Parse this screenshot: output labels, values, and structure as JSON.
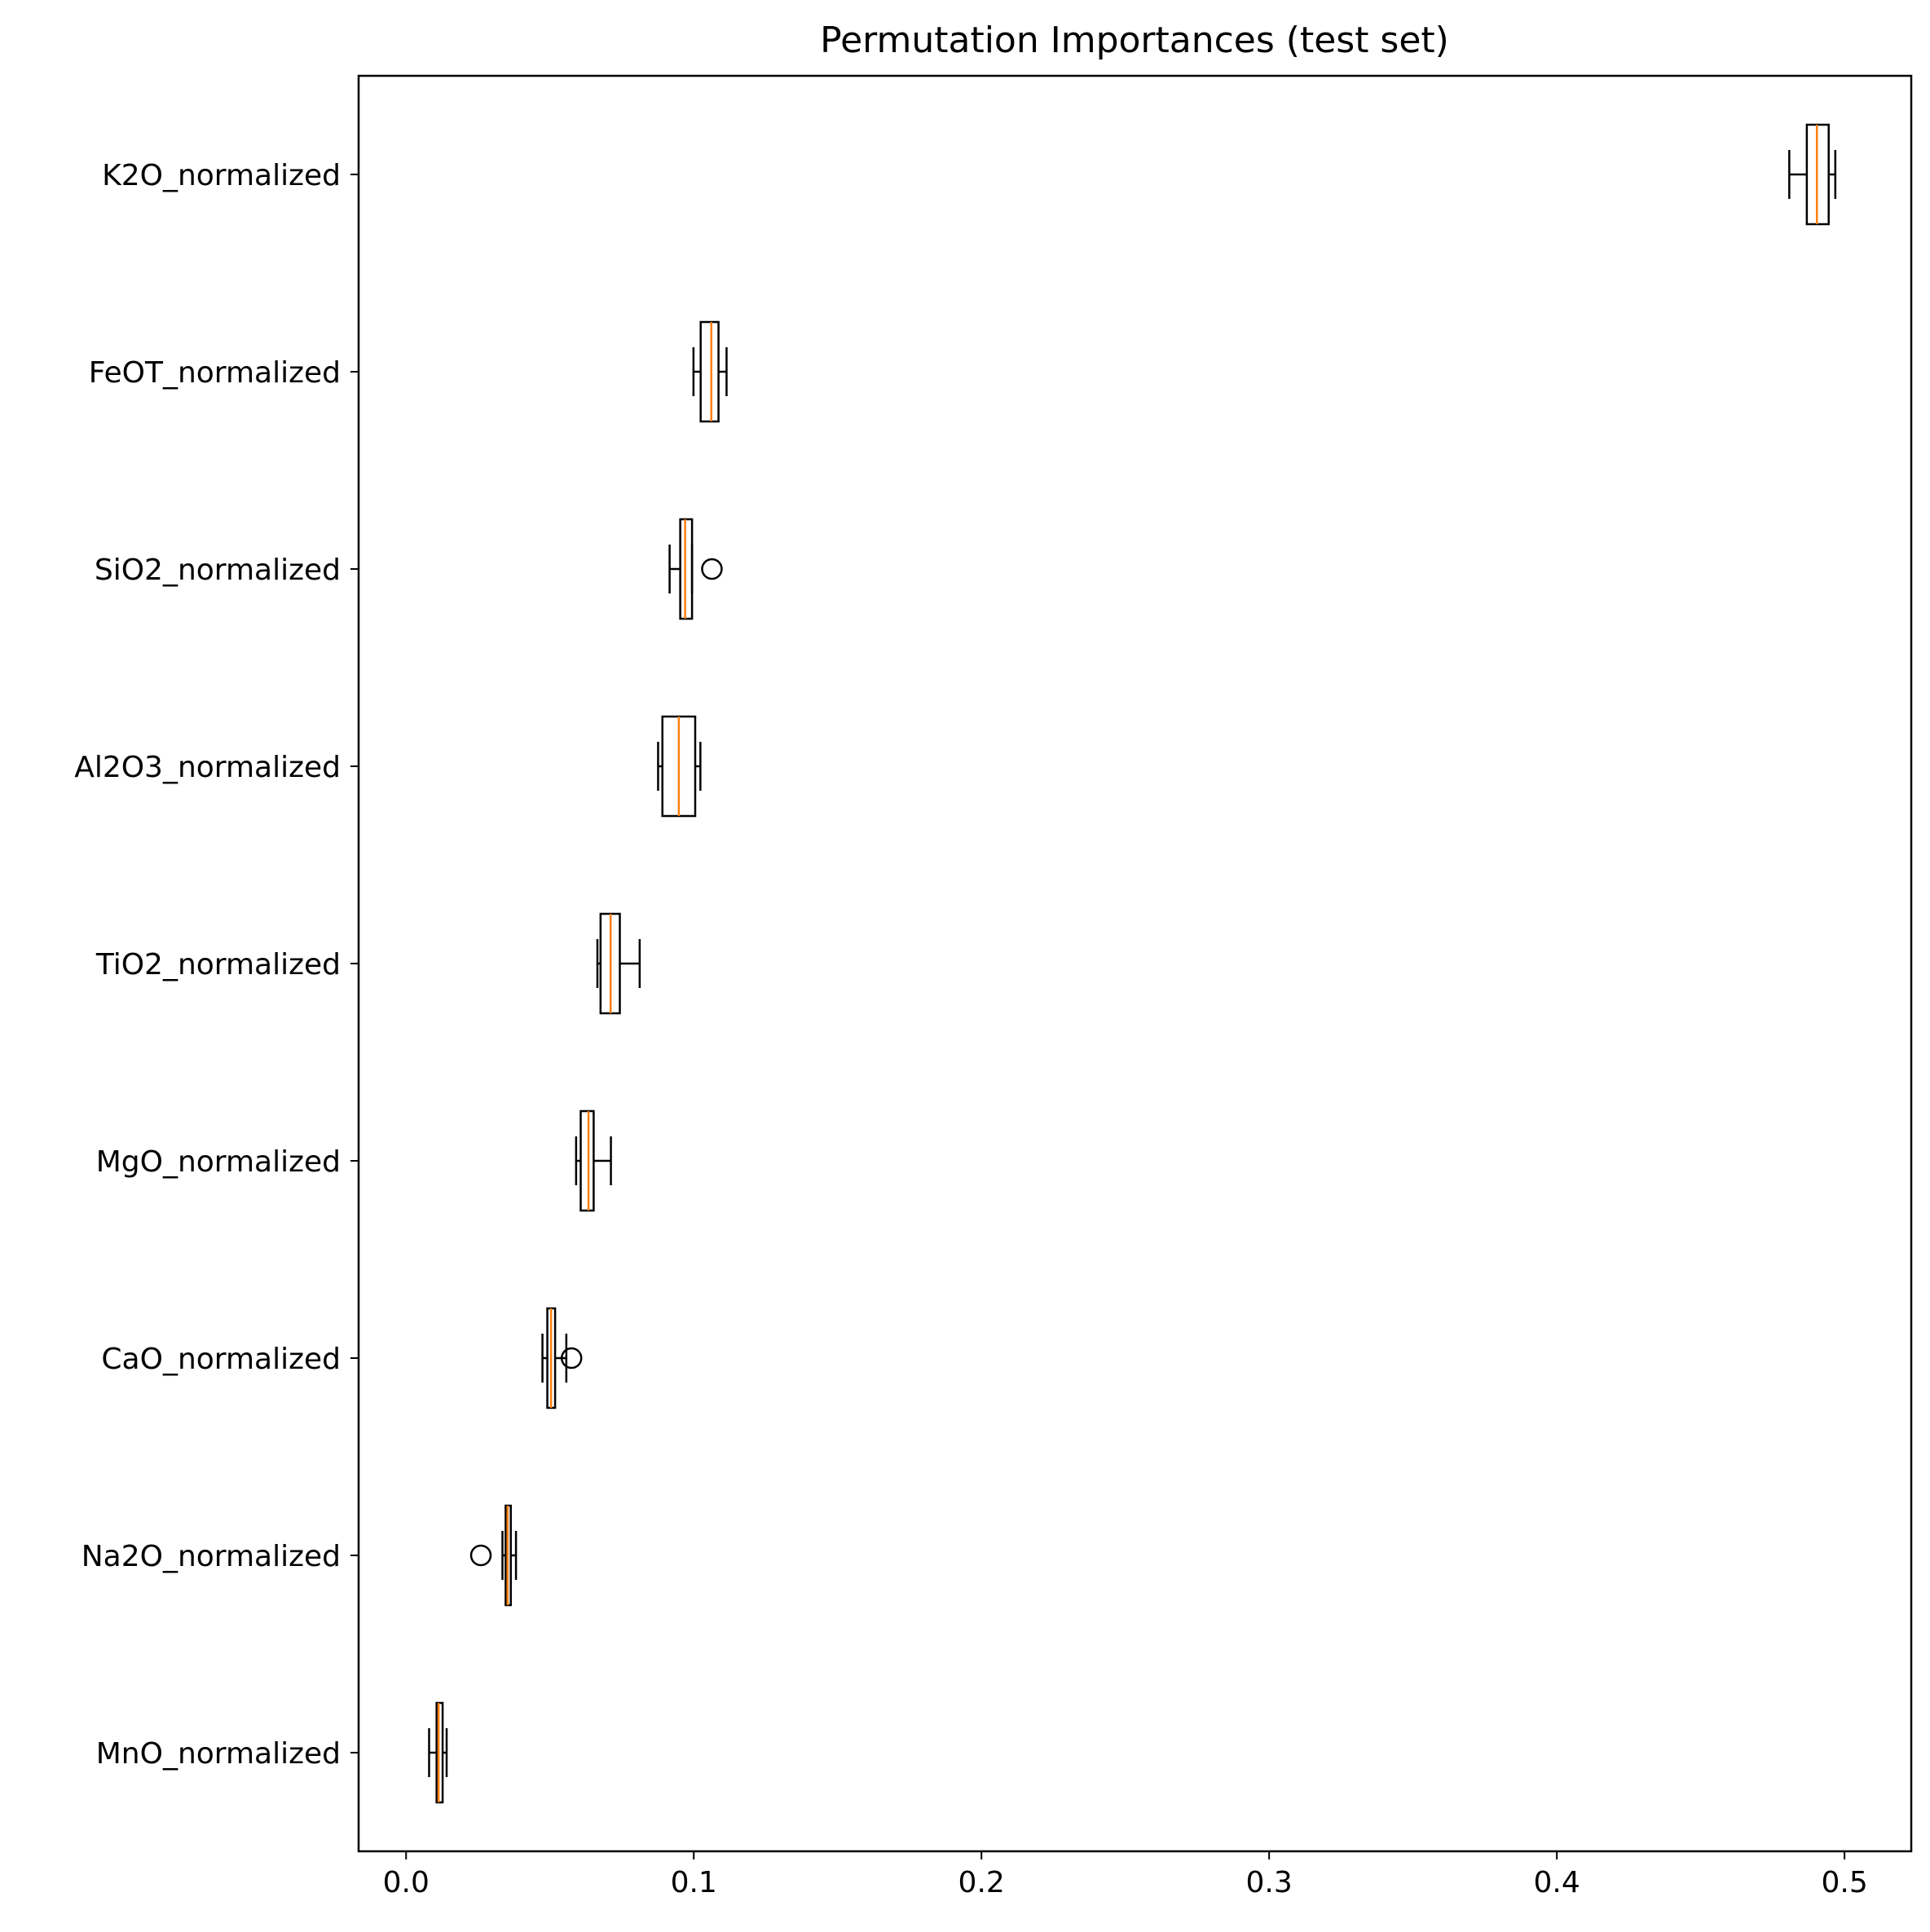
{
  "chart_data": {
    "type": "box",
    "orientation": "horizontal",
    "title": "Permutation Importances (test set)",
    "xlabel": "",
    "ylabel": "",
    "xlim": [
      -0.0165,
      0.5232
    ],
    "xticks": [
      0.0,
      0.1,
      0.2,
      0.3,
      0.4,
      0.5
    ],
    "xtick_labels": [
      "0.0",
      "0.1",
      "0.2",
      "0.3",
      "0.4",
      "0.5"
    ],
    "grid": false,
    "colors": {
      "box": "#000000",
      "median": "#ff7f0e",
      "background": "#ffffff"
    },
    "categories": [
      "K2O_normalized",
      "FeOT_normalized",
      "SiO2_normalized",
      "Al2O3_normalized",
      "TiO2_normalized",
      "MgO_normalized",
      "CaO_normalized",
      "Na2O_normalized",
      "MnO_normalized"
    ],
    "boxes": [
      {
        "whisker_low": 0.4808,
        "q1": 0.4869,
        "median": 0.4904,
        "q3": 0.4945,
        "whisker_high": 0.4968,
        "outliers": []
      },
      {
        "whisker_low": 0.0999,
        "q1": 0.1024,
        "median": 0.1061,
        "q3": 0.1086,
        "whisker_high": 0.1114,
        "outliers": []
      },
      {
        "whisker_low": 0.0916,
        "q1": 0.0953,
        "median": 0.097,
        "q3": 0.0994,
        "whisker_high": 0.0994,
        "outliers": [
          0.1063
        ]
      },
      {
        "whisker_low": 0.0876,
        "q1": 0.0891,
        "median": 0.0948,
        "q3": 0.1005,
        "whisker_high": 0.1023,
        "outliers": []
      },
      {
        "whisker_low": 0.0665,
        "q1": 0.0676,
        "median": 0.0711,
        "q3": 0.0743,
        "whisker_high": 0.0812,
        "outliers": []
      },
      {
        "whisker_low": 0.0591,
        "q1": 0.0607,
        "median": 0.0634,
        "q3": 0.0652,
        "whisker_high": 0.0712,
        "outliers": []
      },
      {
        "whisker_low": 0.0474,
        "q1": 0.0491,
        "median": 0.0504,
        "q3": 0.0518,
        "whisker_high": 0.0557,
        "outliers": [
          0.0575
        ]
      },
      {
        "whisker_low": 0.0335,
        "q1": 0.0346,
        "median": 0.0353,
        "q3": 0.0364,
        "whisker_high": 0.0382,
        "outliers": [
          0.026
        ]
      },
      {
        "whisker_low": 0.008,
        "q1": 0.0106,
        "median": 0.0113,
        "q3": 0.0127,
        "whisker_high": 0.0141,
        "outliers": []
      }
    ]
  }
}
